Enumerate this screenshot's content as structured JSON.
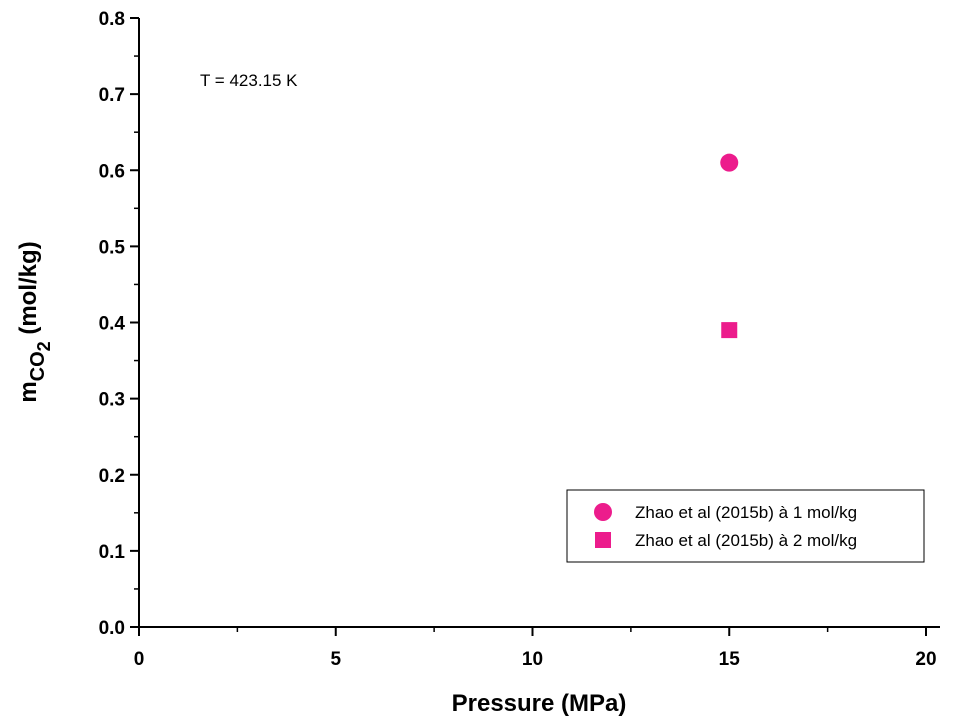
{
  "chart_data": {
    "type": "scatter",
    "annotation": "T = 423.15 K",
    "xlabel": "Pressure (MPa)",
    "ylabel": {
      "main": "m",
      "sub": "CO",
      "subsub": "2",
      "rest": " (mol/kg)"
    },
    "xlim": [
      0,
      20
    ],
    "ylim": [
      0,
      0.8
    ],
    "x_ticks": [
      0,
      5,
      10,
      15,
      20
    ],
    "x_tick_labels": [
      "0",
      "5",
      "10",
      "15",
      "20"
    ],
    "y_ticks": [
      0.0,
      0.1,
      0.2,
      0.3,
      0.4,
      0.5,
      0.6,
      0.7,
      0.8
    ],
    "y_tick_labels": [
      "0.0",
      "0.1",
      "0.2",
      "0.3",
      "0.4",
      "0.5",
      "0.6",
      "0.7",
      "0.8"
    ],
    "grid": false,
    "legend_position": "bottom-right",
    "series": [
      {
        "name": "Zhao et al (2015b) à 1 mol/kg",
        "marker": "circle",
        "color": "#ec1c8c",
        "points": [
          {
            "x": 15,
            "y": 0.61
          }
        ]
      },
      {
        "name": "Zhao et al (2015b) à 2 mol/kg",
        "marker": "square",
        "color": "#ec1c8c",
        "points": [
          {
            "x": 15,
            "y": 0.39
          }
        ]
      }
    ]
  }
}
